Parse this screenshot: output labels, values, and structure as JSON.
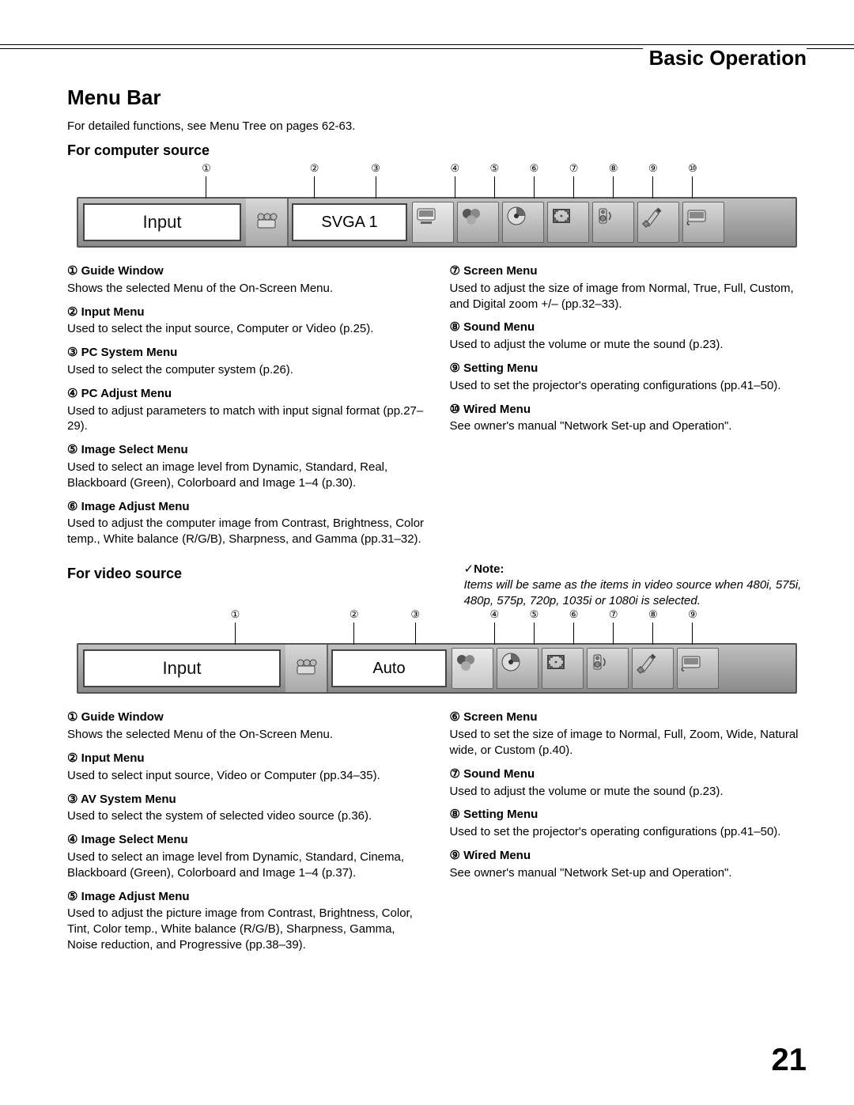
{
  "header": {
    "section": "Basic Operation",
    "page_number": "21"
  },
  "title": "Menu Bar",
  "intro": "For detailed functions, see Menu Tree on pages 62-63.",
  "computer": {
    "heading": "For computer source",
    "callout_labels": [
      "①",
      "②",
      "③",
      "④",
      "⑤",
      "⑥",
      "⑦",
      "⑧",
      "⑨",
      "⑩"
    ],
    "callout_positions_pct": [
      18,
      33,
      41.5,
      52.5,
      58,
      63.5,
      69,
      74.5,
      80,
      85.5
    ],
    "menubar": {
      "guide": "Input",
      "system": "SVGA 1"
    },
    "left_items": [
      {
        "num": "①",
        "title": "Guide Window",
        "desc": "Shows the selected Menu of the On-Screen Menu."
      },
      {
        "num": "②",
        "title": "Input Menu",
        "desc": "Used to select the input source, Computer or Video (p.25)."
      },
      {
        "num": "③",
        "title": "PC System Menu",
        "desc": "Used to select the computer system (p.26)."
      },
      {
        "num": "④",
        "title": "PC Adjust Menu",
        "desc": "Used to adjust parameters to match with input signal format (pp.27–29)."
      },
      {
        "num": "⑤",
        "title": "Image Select Menu",
        "desc": "Used to select an image level from Dynamic, Standard, Real, Blackboard (Green), Colorboard and Image 1–4 (p.30)."
      },
      {
        "num": "⑥",
        "title": "Image Adjust Menu",
        "desc": "Used to adjust the computer image from Contrast, Brightness, Color temp., White balance (R/G/B), Sharpness, and Gamma (pp.31–32)."
      }
    ],
    "right_items": [
      {
        "num": "⑦",
        "title": "Screen Menu",
        "desc": "Used to adjust the size of image from Normal, True, Full, Custom, and Digital zoom +/– (pp.32–33)."
      },
      {
        "num": "⑧",
        "title": "Sound Menu",
        "desc": "Used to adjust the volume or mute the sound (p.23)."
      },
      {
        "num": "⑨",
        "title": "Setting Menu",
        "desc": "Used to set the projector's operating configurations (pp.41–50)."
      },
      {
        "num": "⑩",
        "title": "Wired Menu",
        "desc": "See owner's manual \"Network Set-up and Operation\"."
      }
    ]
  },
  "video": {
    "heading": "For video source",
    "note_title": "Note:",
    "note_body": "Items will be same as the items in video source when 480i, 575i, 480p, 575p, 720p, 1035i or 1080i is selected.",
    "callout_labels": [
      "①",
      "②",
      "③",
      "④",
      "⑤",
      "⑥",
      "⑦",
      "⑧",
      "⑨"
    ],
    "callout_positions_pct": [
      22,
      38.5,
      47,
      58,
      63.5,
      69,
      74.5,
      80,
      85.5
    ],
    "menubar": {
      "guide": "Input",
      "system": "Auto"
    },
    "left_items": [
      {
        "num": "①",
        "title": "Guide Window",
        "desc": "Shows the selected Menu of the On-Screen Menu."
      },
      {
        "num": "②",
        "title": "Input Menu",
        "desc": "Used to select input source, Video or Computer (pp.34–35)."
      },
      {
        "num": "③",
        "title": "AV System Menu",
        "desc": "Used to select the system of selected video source (p.36)."
      },
      {
        "num": "④",
        "title": "Image Select Menu",
        "desc": "Used to select an image level from Dynamic, Standard, Cinema, Blackboard (Green), Colorboard and Image 1–4 (p.37)."
      },
      {
        "num": "⑤",
        "title": "Image Adjust Menu",
        "desc": "Used to adjust the picture image from Contrast, Brightness, Color, Tint, Color temp., White balance (R/G/B), Sharpness, Gamma, Noise reduction, and Progressive (pp.38–39)."
      }
    ],
    "right_items": [
      {
        "num": "⑥",
        "title": "Screen Menu",
        "desc": "Used to set the size of image to Normal, Full, Zoom, Wide, Natural wide, or Custom (p.40)."
      },
      {
        "num": "⑦",
        "title": "Sound Menu",
        "desc": "Used to adjust the volume or mute the sound (p.23)."
      },
      {
        "num": "⑧",
        "title": "Setting Menu",
        "desc": "Used to set the projector's operating configurations (pp.41–50)."
      },
      {
        "num": "⑨",
        "title": "Wired Menu",
        "desc": "See owner's manual \"Network Set-up and Operation\"."
      }
    ]
  },
  "icons": {
    "system": "system-icon",
    "computer_row": [
      "pc-adjust-icon",
      "image-select-icon",
      "image-adjust-icon",
      "screen-icon",
      "sound-icon",
      "setting-icon",
      "wired-icon"
    ],
    "video_row": [
      "image-select-icon",
      "image-adjust-icon",
      "screen-icon",
      "sound-icon",
      "setting-icon",
      "wired-icon"
    ]
  },
  "colors": {
    "bar_gradient_top": "#bfbfbf",
    "bar_gradient_bottom": "#8a8a8a",
    "white_box": "#ffffff",
    "border": "#555555"
  }
}
